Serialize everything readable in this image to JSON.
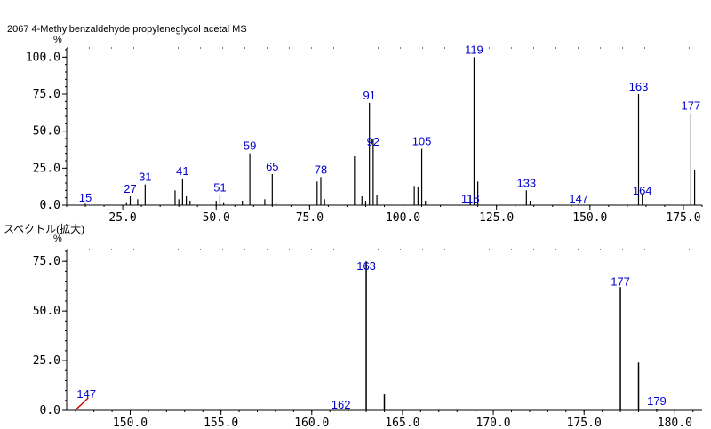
{
  "title": "2067  4-Methylbenzaldehyde propyleneglycol acetal MS",
  "sub_caption": "スペクトル(拡大)",
  "colors": {
    "peak_label": "#0000cc",
    "bar": "#000000",
    "axis": "#000000",
    "annotation": "#cc0000"
  },
  "chart_data": [
    {
      "type": "bar",
      "name": "full-spectrum",
      "y_unit": "%",
      "xlim": [
        10,
        180
      ],
      "ylim": [
        0,
        105
      ],
      "x_ticks": [
        25.0,
        50.0,
        75.0,
        100.0,
        125.0,
        150.0,
        175.0
      ],
      "x_tick_labels": [
        "25.0",
        "50.0",
        "75.0",
        "100.0",
        "125.0",
        "150.0",
        "175.0"
      ],
      "y_ticks": [
        0,
        25,
        50,
        75,
        100
      ],
      "y_tick_labels": [
        "0.0",
        "25.0",
        "50.0",
        "75.0",
        "100.0"
      ],
      "grid": false,
      "peaks": [
        {
          "x": 15,
          "y": 1
        },
        {
          "x": 26,
          "y": 2
        },
        {
          "x": 27,
          "y": 6
        },
        {
          "x": 29,
          "y": 4
        },
        {
          "x": 31,
          "y": 14
        },
        {
          "x": 39,
          "y": 10
        },
        {
          "x": 40,
          "y": 4
        },
        {
          "x": 41,
          "y": 18
        },
        {
          "x": 42,
          "y": 6
        },
        {
          "x": 43,
          "y": 3
        },
        {
          "x": 50,
          "y": 3
        },
        {
          "x": 51,
          "y": 7
        },
        {
          "x": 52,
          "y": 2
        },
        {
          "x": 57,
          "y": 3
        },
        {
          "x": 59,
          "y": 35
        },
        {
          "x": 63,
          "y": 4
        },
        {
          "x": 65,
          "y": 21
        },
        {
          "x": 66,
          "y": 2
        },
        {
          "x": 77,
          "y": 16
        },
        {
          "x": 78,
          "y": 19
        },
        {
          "x": 79,
          "y": 4
        },
        {
          "x": 87,
          "y": 33
        },
        {
          "x": 89,
          "y": 6
        },
        {
          "x": 90,
          "y": 3
        },
        {
          "x": 91,
          "y": 69
        },
        {
          "x": 92,
          "y": 45
        },
        {
          "x": 93,
          "y": 7
        },
        {
          "x": 103,
          "y": 13
        },
        {
          "x": 104,
          "y": 12
        },
        {
          "x": 105,
          "y": 38
        },
        {
          "x": 106,
          "y": 3
        },
        {
          "x": 118,
          "y": 7
        },
        {
          "x": 119,
          "y": 100
        },
        {
          "x": 120,
          "y": 16
        },
        {
          "x": 133,
          "y": 10
        },
        {
          "x": 134,
          "y": 3
        },
        {
          "x": 147,
          "y": 0.8
        },
        {
          "x": 163,
          "y": 75
        },
        {
          "x": 164,
          "y": 8
        },
        {
          "x": 177,
          "y": 62
        },
        {
          "x": 178,
          "y": 24
        }
      ],
      "labels": [
        {
          "x": 15,
          "text": "15"
        },
        {
          "x": 27,
          "text": "27"
        },
        {
          "x": 31,
          "text": "31"
        },
        {
          "x": 41,
          "text": "41"
        },
        {
          "x": 51,
          "text": "51"
        },
        {
          "x": 59,
          "text": "59"
        },
        {
          "x": 65,
          "text": "65"
        },
        {
          "x": 78,
          "text": "78"
        },
        {
          "x": 91,
          "text": "91"
        },
        {
          "x": 92,
          "text": "92"
        },
        {
          "x": 105,
          "text": "105"
        },
        {
          "x": 118,
          "text": "118"
        },
        {
          "x": 119,
          "text": "119"
        },
        {
          "x": 133,
          "text": "133"
        },
        {
          "x": 147,
          "text": "147"
        },
        {
          "x": 163,
          "text": "163"
        },
        {
          "x": 164,
          "text": "164"
        },
        {
          "x": 177,
          "text": "177"
        }
      ]
    },
    {
      "type": "bar",
      "name": "expanded-spectrum",
      "y_unit": "%",
      "xlim": [
        146.5,
        181.5
      ],
      "ylim": [
        0,
        80
      ],
      "x_ticks": [
        150.0,
        155.0,
        160.0,
        165.0,
        170.0,
        175.0,
        180.0
      ],
      "x_tick_labels": [
        "150.0",
        "155.0",
        "160.0",
        "165.0",
        "170.0",
        "175.0",
        "180.0"
      ],
      "y_ticks": [
        0,
        25,
        50,
        75
      ],
      "y_tick_labels": [
        "0.0",
        "25.0",
        "50.0",
        "75.0"
      ],
      "grid": false,
      "peaks": [
        {
          "x": 147,
          "y": 0.8
        },
        {
          "x": 162,
          "y": 0.5
        },
        {
          "x": 163,
          "y": 75
        },
        {
          "x": 164,
          "y": 8
        },
        {
          "x": 177,
          "y": 62
        },
        {
          "x": 178,
          "y": 24
        },
        {
          "x": 179,
          "y": 0.5
        }
      ],
      "labels": [
        {
          "x": 147,
          "text": "147"
        },
        {
          "x": 162,
          "text": "162"
        },
        {
          "x": 163,
          "text": "163"
        },
        {
          "x": 177,
          "text": "177"
        },
        {
          "x": 179,
          "text": "179"
        }
      ]
    }
  ]
}
